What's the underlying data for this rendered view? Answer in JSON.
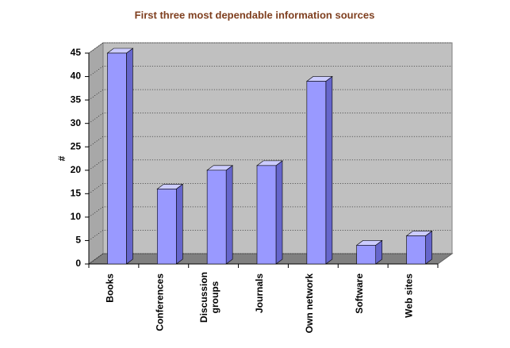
{
  "chart_data": {
    "type": "bar",
    "title": "First three most dependable information sources",
    "y_label": "#",
    "categories": [
      "Books",
      "Conferences",
      "Discussion groups",
      "Journals",
      "Own network",
      "Software",
      "Web sites"
    ],
    "values": [
      45,
      16,
      20,
      21,
      39,
      4,
      6
    ],
    "color": "#9999ff",
    "ylim": [
      0,
      45
    ],
    "yticks": [
      0,
      5,
      10,
      15,
      20,
      25,
      30,
      35,
      40,
      45
    ],
    "grid": true
  }
}
